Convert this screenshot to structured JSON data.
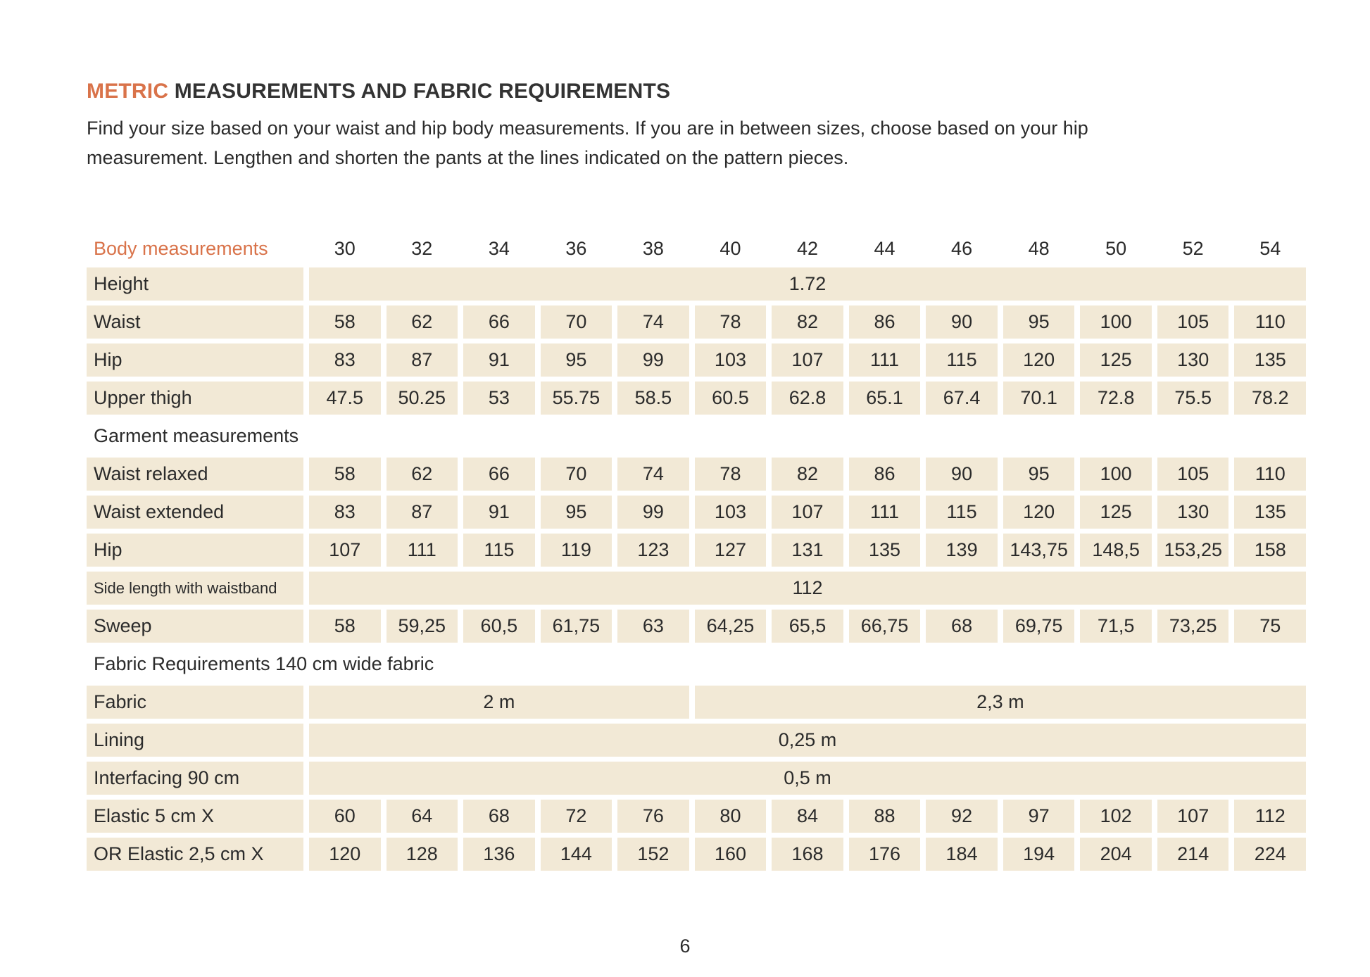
{
  "page": {
    "title": {
      "highlight": "METRIC",
      "rest": " MEASUREMENTS AND FABRIC REQUIREMENTS"
    },
    "intro_line1": "Find your size based on your waist and hip body measurements. If you are in between sizes, choose based on your hip",
    "intro_line2": "measurement. Lengthen and shorten the pants at the lines indicated on the pattern pieces.",
    "page_number": "6"
  },
  "colors": {
    "accent": "#d9734a",
    "cell_background": "#f2e9d6",
    "text": "#2b2b2b"
  },
  "table": {
    "header": {
      "label": "Body measurements",
      "sizes": [
        "30",
        "32",
        "34",
        "36",
        "38",
        "40",
        "42",
        "44",
        "46",
        "48",
        "50",
        "52",
        "54"
      ]
    },
    "rows": [
      {
        "type": "merged",
        "label": "Height",
        "value": "1.72"
      },
      {
        "type": "values",
        "label": "Waist",
        "values": [
          "58",
          "62",
          "66",
          "70",
          "74",
          "78",
          "82",
          "86",
          "90",
          "95",
          "100",
          "105",
          "110"
        ]
      },
      {
        "type": "values",
        "label": "Hip",
        "values": [
          "83",
          "87",
          "91",
          "95",
          "99",
          "103",
          "107",
          "111",
          "115",
          "120",
          "125",
          "130",
          "135"
        ]
      },
      {
        "type": "values",
        "label": "Upper thigh",
        "values": [
          "47.5",
          "50.25",
          "53",
          "55.75",
          "58.5",
          "60.5",
          "62.8",
          "65.1",
          "67.4",
          "70.1",
          "72.8",
          "75.5",
          "78.2"
        ]
      },
      {
        "type": "section",
        "label": "Garment measurements"
      },
      {
        "type": "values",
        "label": "Waist relaxed",
        "values": [
          "58",
          "62",
          "66",
          "70",
          "74",
          "78",
          "82",
          "86",
          "90",
          "95",
          "100",
          "105",
          "110"
        ]
      },
      {
        "type": "values",
        "label": "Waist extended",
        "values": [
          "83",
          "87",
          "91",
          "95",
          "99",
          "103",
          "107",
          "111",
          "115",
          "120",
          "125",
          "130",
          "135"
        ]
      },
      {
        "type": "values",
        "label": "Hip",
        "values": [
          "107",
          "111",
          "115",
          "119",
          "123",
          "127",
          "131",
          "135",
          "139",
          "143,75",
          "148,5",
          "153,25",
          "158"
        ]
      },
      {
        "type": "merged",
        "label": "Side length with waistband",
        "small_label": true,
        "value": "112"
      },
      {
        "type": "values",
        "label": "Sweep",
        "values": [
          "58",
          "59,25",
          "60,5",
          "61,75",
          "63",
          "64,25",
          "65,5",
          "66,75",
          "68",
          "69,75",
          "71,5",
          "73,25",
          "75"
        ]
      },
      {
        "type": "section",
        "label": "Fabric Requirements 140 cm wide fabric"
      },
      {
        "type": "split",
        "label": "Fabric",
        "segments": [
          {
            "span": 5,
            "value": "2 m"
          },
          {
            "span": 8,
            "value": "2,3 m"
          }
        ]
      },
      {
        "type": "merged",
        "label": "Lining",
        "value": "0,25 m"
      },
      {
        "type": "merged",
        "label": "Interfacing 90 cm",
        "value": "0,5 m"
      },
      {
        "type": "values",
        "label": "Elastic 5 cm X",
        "values": [
          "60",
          "64",
          "68",
          "72",
          "76",
          "80",
          "84",
          "88",
          "92",
          "97",
          "102",
          "107",
          "112"
        ]
      },
      {
        "type": "values",
        "label": "OR Elastic 2,5 cm X",
        "values": [
          "120",
          "128",
          "136",
          "144",
          "152",
          "160",
          "168",
          "176",
          "184",
          "194",
          "204",
          "214",
          "224"
        ]
      }
    ]
  }
}
